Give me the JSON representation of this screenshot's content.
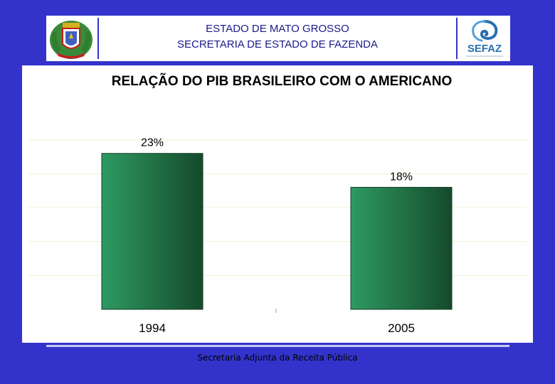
{
  "header": {
    "line1": "ESTADO DE MATO GROSSO",
    "line2": "SECRETARIA DE ESTADO DE FAZENDA",
    "logo_right_text": "SEFAZ"
  },
  "footer": {
    "text": "Secretaria Adjunta da Receita Pública"
  },
  "colors": {
    "background": "#3333cc",
    "bar_light": "#2e9a62",
    "bar_dark": "#154a2c",
    "header_text": "#1a1a8c"
  },
  "chart_data": {
    "type": "bar",
    "title": "RELAÇÃO DO PIB BRASILEIRO COM O AMERICANO",
    "categories": [
      "1994",
      "2005"
    ],
    "values": [
      23,
      18
    ],
    "data_labels": [
      "23%",
      "18%"
    ],
    "ylim": [
      0,
      30
    ],
    "grid": true,
    "xlabel": "",
    "ylabel": ""
  }
}
